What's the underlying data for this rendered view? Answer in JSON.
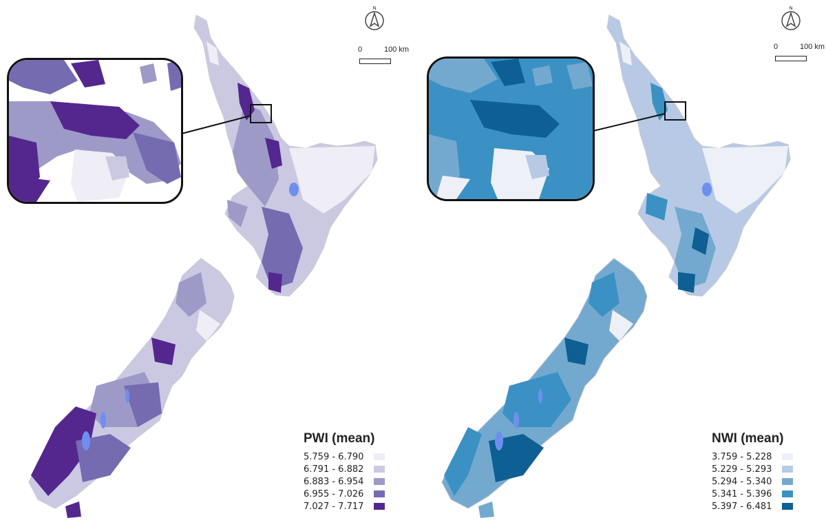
{
  "panels": [
    {
      "id": "pwi",
      "legend_title": "PWI (mean)",
      "classes": [
        {
          "range": "5.759 - 6.790",
          "color": "#efedf5"
        },
        {
          "range": "6.791 - 6.882",
          "color": "#cbc9e2"
        },
        {
          "range": "6.883 - 6.954",
          "color": "#9e9ac8"
        },
        {
          "range": "6.955 - 7.026",
          "color": "#756bb1"
        },
        {
          "range": "7.027 - 7.717",
          "color": "#54278f"
        }
      ],
      "scale": {
        "zero": "0",
        "km": "100 km"
      },
      "north": "N"
    },
    {
      "id": "nwi",
      "legend_title": "NWI (mean)",
      "classes": [
        {
          "range": "3.759 - 5.228",
          "color": "#edf0f7"
        },
        {
          "range": "5.229 - 5.293",
          "color": "#b7c9e4"
        },
        {
          "range": "5.294 - 5.340",
          "color": "#74a9cf"
        },
        {
          "range": "5.341 - 5.396",
          "color": "#3b91c4"
        },
        {
          "range": "5.397 - 6.481",
          "color": "#0e5f93"
        }
      ],
      "scale": {
        "zero": "0",
        "km": "100 km"
      },
      "north": "N"
    }
  ],
  "colors": {
    "lake": "#6f8ff0",
    "outline": "#c9c9d2"
  }
}
